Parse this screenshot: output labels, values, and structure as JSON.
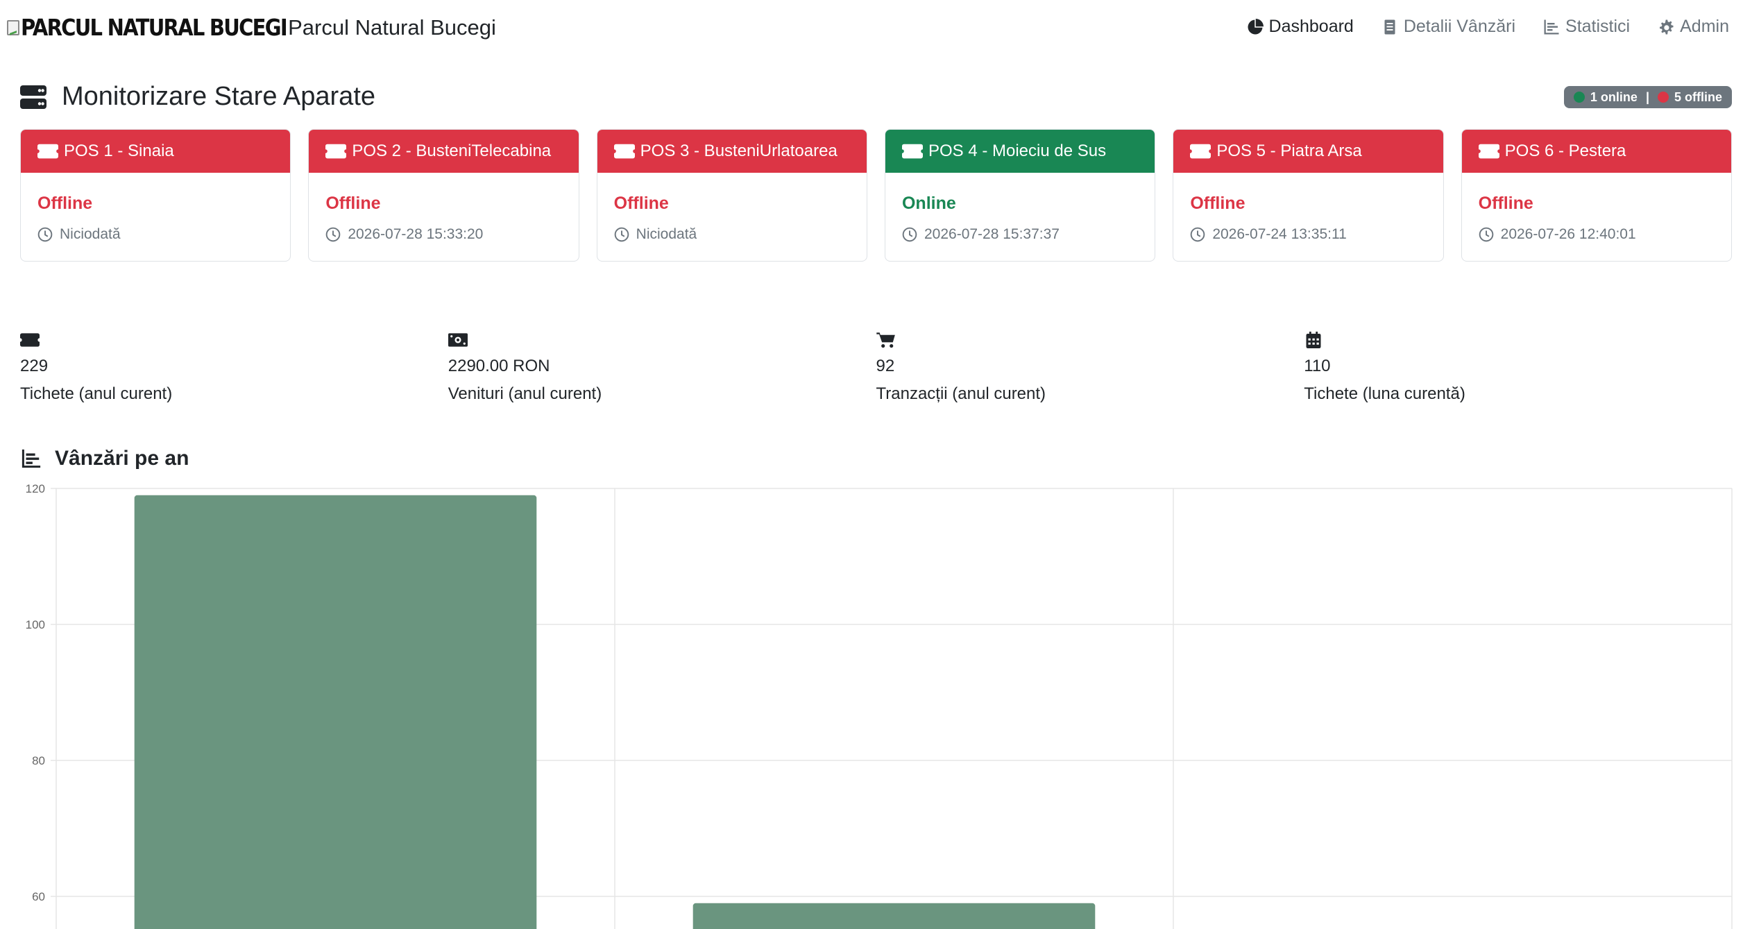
{
  "brand": {
    "img_alt": "PARCUL NATURAL BUCEGI",
    "text": "Parcul Natural Bucegi"
  },
  "nav": [
    {
      "label": "Dashboard",
      "icon": "pie-chart-icon",
      "active": true
    },
    {
      "label": "Detalii Vânzări",
      "icon": "receipt-icon",
      "active": false
    },
    {
      "label": "Statistici",
      "icon": "bar-chart-icon",
      "active": false
    },
    {
      "label": "Admin",
      "icon": "gear-icon",
      "active": false
    }
  ],
  "monitor": {
    "title": "Monitorizare Stare Aparate",
    "online_text": "1 online",
    "separator": "|",
    "offline_text": "5 offline"
  },
  "pos": [
    {
      "name": "POS 1 - Sinaia",
      "status": "Offline",
      "time": "Niciodată",
      "state": "offline"
    },
    {
      "name": "POS 2 - BusteniTelecabina",
      "status": "Offline",
      "time": "2026-07-28 15:33:20",
      "state": "offline"
    },
    {
      "name": "POS 3 - BusteniUrlatoarea",
      "status": "Offline",
      "time": "Niciodată",
      "state": "offline"
    },
    {
      "name": "POS 4 - Moieciu de Sus",
      "status": "Online",
      "time": "2026-07-28 15:37:37",
      "state": "online"
    },
    {
      "name": "POS 5 - Piatra Arsa",
      "status": "Offline",
      "time": "2026-07-24 13:35:11",
      "state": "offline"
    },
    {
      "name": "POS 6 - Pestera",
      "status": "Offline",
      "time": "2026-07-26 12:40:01",
      "state": "offline"
    }
  ],
  "stats": [
    {
      "icon": "ticket-icon",
      "value": "229",
      "label": "Tichete (anul curent)"
    },
    {
      "icon": "money-icon",
      "value": "2290.00 RON",
      "label": "Venituri (anul curent)"
    },
    {
      "icon": "cart-icon",
      "value": "92",
      "label": "Tranzacții (anul curent)"
    },
    {
      "icon": "calendar-icon",
      "value": "110",
      "label": "Tichete (luna curentă)"
    }
  ],
  "chart_section": {
    "title": "Vânzări pe an"
  },
  "colors": {
    "danger": "#dc3545",
    "success": "#198754",
    "bar": "#6a957f",
    "grid": "#e5e5e5"
  },
  "chart_data": {
    "type": "bar",
    "categories": [
      "",
      "",
      ""
    ],
    "values": [
      119,
      59,
      null
    ],
    "title": "Vânzări pe an",
    "xlabel": "",
    "ylabel": "",
    "yticks": [
      60,
      80,
      100,
      120
    ],
    "ylim_visible": [
      55,
      120
    ],
    "grid": true,
    "bar_color": "#6a957f"
  }
}
